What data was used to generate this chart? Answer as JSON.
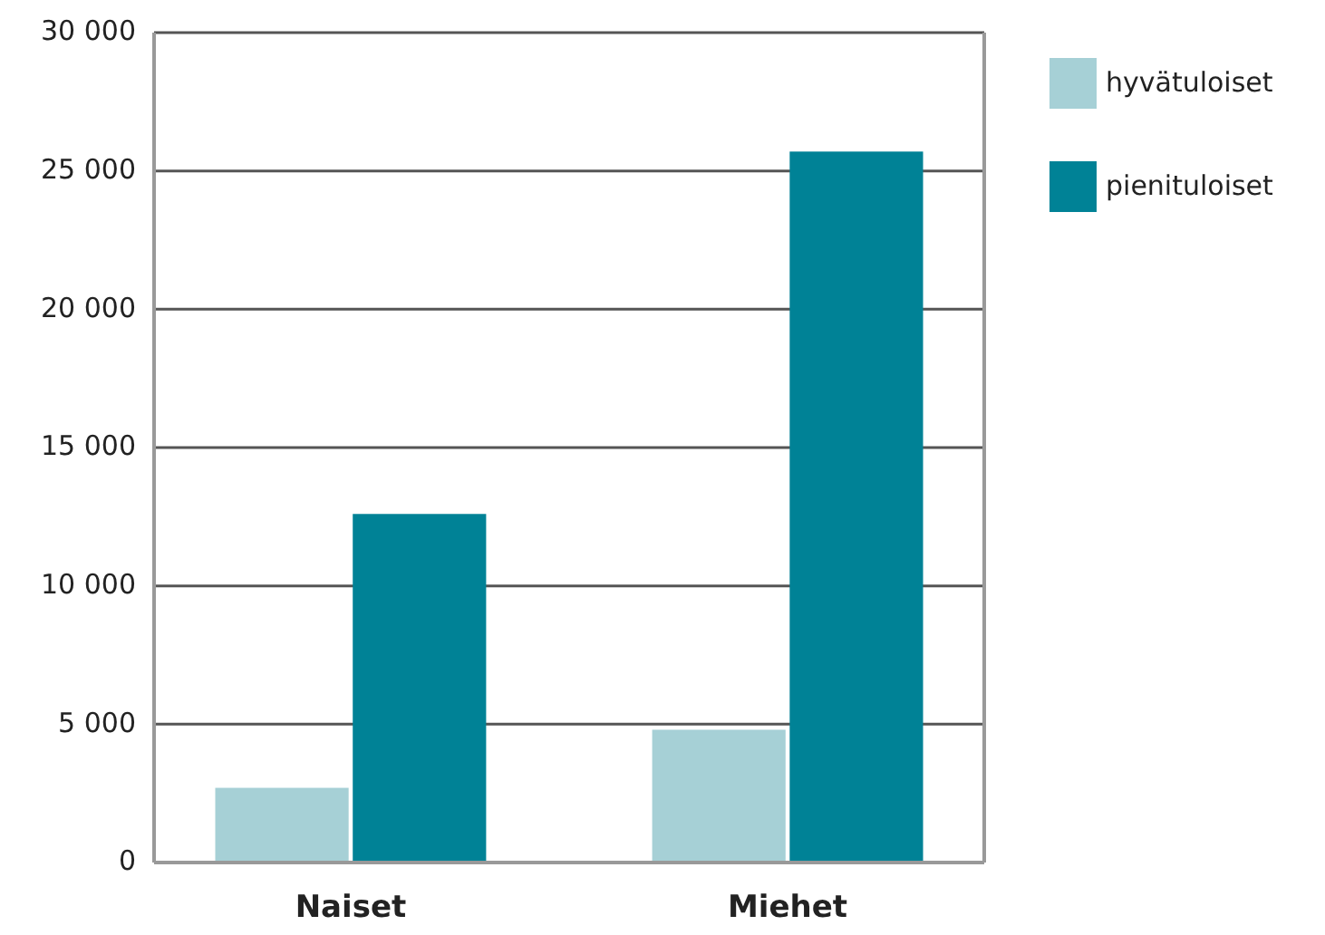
{
  "chart_data": {
    "type": "bar",
    "categories": [
      "Naiset",
      "Miehet"
    ],
    "series": [
      {
        "name": "hyvätuloiset",
        "color": "#a6d0d6",
        "values": [
          2700,
          4800
        ]
      },
      {
        "name": "pienituloiset",
        "color": "#008296",
        "values": [
          12600,
          25700
        ]
      }
    ],
    "ylim": [
      0,
      30000
    ],
    "yticks": [
      {
        "value": 0,
        "label": "0"
      },
      {
        "value": 5000,
        "label": "5 000"
      },
      {
        "value": 10000,
        "label": "10 000"
      },
      {
        "value": 15000,
        "label": "15 000"
      },
      {
        "value": 20000,
        "label": "20 000"
      },
      {
        "value": 25000,
        "label": "25 000"
      },
      {
        "value": 30000,
        "label": "30 000"
      }
    ],
    "grid": "y",
    "legend": "top right"
  }
}
